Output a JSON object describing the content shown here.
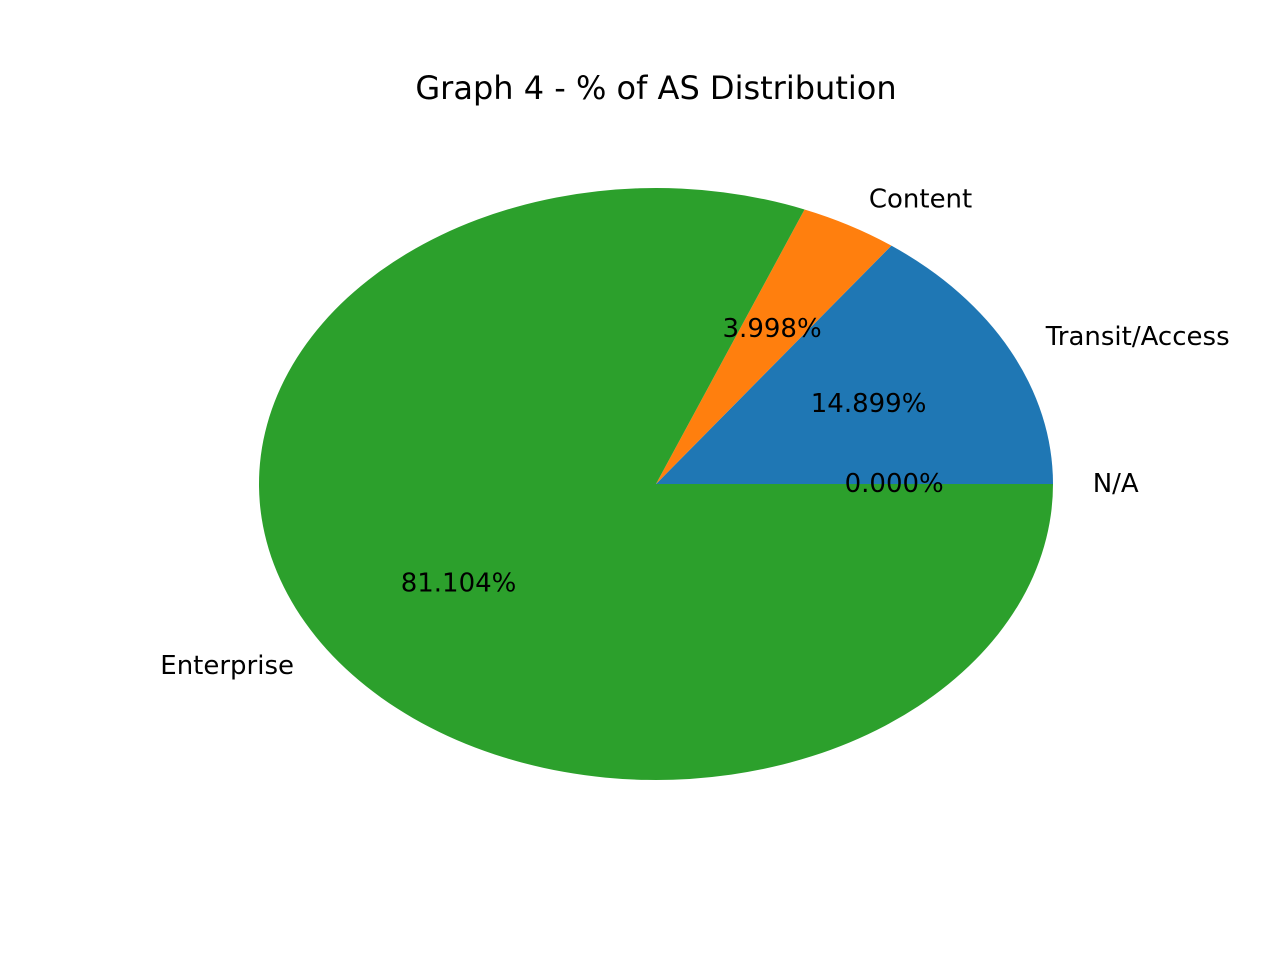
{
  "chart_data": {
    "type": "pie",
    "title": "Graph 4 - % of AS Distribution",
    "slices": [
      {
        "label": "N/A",
        "value": 0.0,
        "pct_label": "0.000%",
        "color": "#1f77b4"
      },
      {
        "label": "Transit/Access",
        "value": 14.899,
        "pct_label": "14.899%",
        "color": "#1f77b4"
      },
      {
        "label": "Content",
        "value": 3.998,
        "pct_label": "3.998%",
        "color": "#ff7f0e"
      },
      {
        "label": "Enterprise",
        "value": 81.104,
        "pct_label": "81.104%",
        "color": "#2ca02c"
      }
    ],
    "start_angle_deg": 0,
    "direction": "counterclockwise",
    "legend": "none"
  }
}
